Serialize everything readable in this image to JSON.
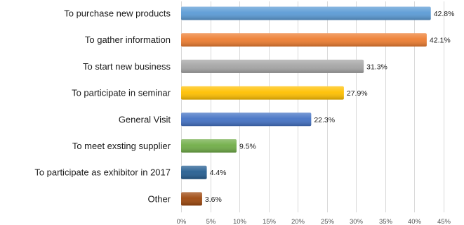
{
  "chart_data": {
    "type": "bar",
    "orientation": "horizontal",
    "title": "",
    "xlabel": "",
    "ylabel": "",
    "categories": [
      "To purchase new products",
      "To gather information",
      "To start new business",
      "To participate in seminar",
      "General Visit",
      "To meet exsting supplier",
      "To participate as exhibitor in 2017",
      "Other"
    ],
    "values": [
      42.8,
      42.1,
      31.3,
      27.9,
      22.3,
      9.5,
      4.4,
      3.6
    ],
    "value_labels": [
      "42.8%",
      "42.1%",
      "31.3%",
      "27.9%",
      "22.3%",
      "9.5%",
      "4.4%",
      "3.6%"
    ],
    "bar_colors": [
      "#5B9BD5",
      "#ED7D31",
      "#A5A5A5",
      "#FFC000",
      "#4472C4",
      "#70AD47",
      "#255E91",
      "#9E480E"
    ],
    "xlim": [
      0,
      45
    ],
    "x_ticks": [
      0,
      5,
      10,
      15,
      20,
      25,
      30,
      35,
      40,
      45
    ],
    "x_tick_labels": [
      "0%",
      "5%",
      "10%",
      "15%",
      "20%",
      "25%",
      "30%",
      "35%",
      "40%",
      "45%"
    ],
    "grid": true,
    "legend": "none"
  }
}
